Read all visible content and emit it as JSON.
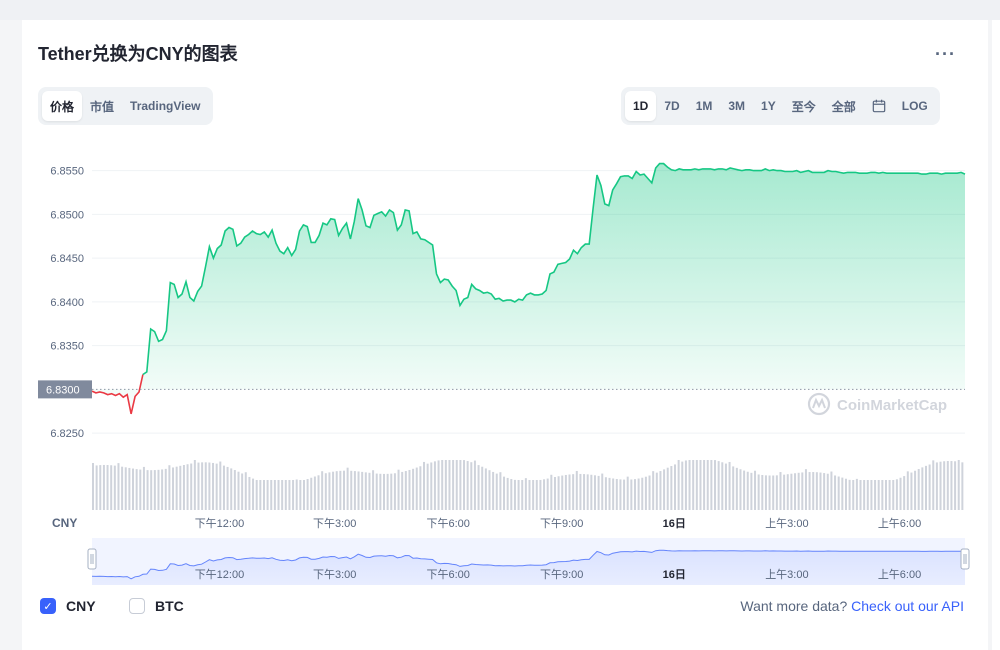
{
  "title": "Tether兑换为CNY的图表",
  "more_icon": "···",
  "chart_tabs": [
    {
      "label": "价格",
      "active": true
    },
    {
      "label": "市值",
      "active": false
    },
    {
      "label": "TradingView",
      "active": false
    }
  ],
  "range_tabs": [
    {
      "label": "1D",
      "active": true
    },
    {
      "label": "7D",
      "active": false
    },
    {
      "label": "1M",
      "active": false
    },
    {
      "label": "3M",
      "active": false
    },
    {
      "label": "1Y",
      "active": false
    },
    {
      "label": "至今",
      "active": false
    },
    {
      "label": "全部",
      "active": false
    }
  ],
  "calendar_icon": "calendar-icon",
  "log_label": "LOG",
  "watermark": "CoinMarketCap",
  "currency_label": "CNY",
  "legend": [
    {
      "label": "CNY",
      "checked": true
    },
    {
      "label": "BTC",
      "checked": false
    }
  ],
  "api_text": "Want more data?",
  "api_link": "Check out our API",
  "colors": {
    "up": "#16c784",
    "down": "#ea3943",
    "accent": "#3861fb",
    "volume": "#cfd3db",
    "baseline_tag": "#808a9d"
  },
  "chart_data": {
    "type": "area",
    "ylabel": "CNY",
    "ylim": [
      6.8225,
      6.8585
    ],
    "yticks": [
      "6.8550",
      "6.8500",
      "6.8450",
      "6.8400",
      "6.8350",
      "6.8250"
    ],
    "baseline": 6.83,
    "baseline_label": "6.8300",
    "xticks": [
      "下午12:00",
      "下午3:00",
      "下午6:00",
      "下午9:00",
      "16日",
      "上午3:00",
      "上午6:00"
    ],
    "xtick_pos": [
      0.146,
      0.278,
      0.408,
      0.538,
      0.667,
      0.796,
      0.925
    ],
    "series": [
      {
        "values": [
          6.8298,
          6.8296,
          6.8297,
          6.8296,
          6.8294,
          6.8295,
          6.8293,
          6.8295,
          6.8291,
          6.8294,
          6.8272,
          6.8292,
          6.8297,
          6.8317,
          6.832,
          6.8369,
          6.8366,
          6.8355,
          6.8357,
          6.8367,
          6.8422,
          6.842,
          6.8405,
          6.8409,
          6.8423,
          6.8405,
          6.8401,
          6.8412,
          6.8418,
          6.844,
          6.8463,
          6.845,
          6.8461,
          6.8465,
          6.8481,
          6.8485,
          6.8483,
          6.8464,
          6.8467,
          6.8474,
          6.8477,
          6.8481,
          6.8478,
          6.8477,
          6.848,
          6.8474,
          6.8482,
          6.8467,
          6.8458,
          6.8455,
          6.8462,
          6.8453,
          6.846,
          6.8481,
          6.8488,
          6.8486,
          6.8468,
          6.8468,
          6.8476,
          6.849,
          6.8488,
          6.8495,
          6.8494,
          6.8476,
          6.8484,
          6.849,
          6.8472,
          6.8492,
          6.8518,
          6.8505,
          6.8487,
          6.8485,
          6.8499,
          6.8501,
          6.8503,
          6.8498,
          6.8505,
          6.8502,
          6.8482,
          6.8488,
          6.8505,
          6.8504,
          6.8478,
          6.848,
          6.8472,
          6.8471,
          6.8468,
          6.8465,
          6.8432,
          6.8422,
          6.8426,
          6.8425,
          6.8418,
          6.8413,
          6.8396,
          6.8403,
          6.8405,
          6.842,
          6.8415,
          6.8413,
          6.841,
          6.8411,
          6.8409,
          6.8403,
          6.8404,
          6.8401,
          6.8402,
          6.8402,
          6.84,
          6.8403,
          6.8402,
          6.8408,
          6.841,
          6.8408,
          6.8408,
          6.8409,
          6.8413,
          6.8432,
          6.8434,
          6.8443,
          6.8444,
          6.8445,
          6.8449,
          6.8459,
          6.8455,
          6.8462,
          6.8466,
          6.8466,
          6.8507,
          6.8545,
          6.8533,
          6.8512,
          6.851,
          6.8528,
          6.8535,
          6.8543,
          6.8544,
          6.8544,
          6.8541,
          6.8549,
          6.8545,
          6.8546,
          6.8541,
          6.8536,
          6.8553,
          6.8558,
          6.8558,
          6.8554,
          6.8551,
          6.855,
          6.8552,
          6.8551,
          6.8551,
          6.8551,
          6.8552,
          6.8551,
          6.8552,
          6.8552,
          6.8552,
          6.8551,
          6.8552,
          6.8552,
          6.8551,
          6.8553,
          6.8552,
          6.8551,
          6.855,
          6.8551,
          6.8551,
          6.855,
          6.855,
          6.855,
          6.8552,
          6.855,
          6.8551,
          6.855,
          6.855,
          6.8549,
          6.8549,
          6.8549,
          6.855,
          6.8548,
          6.8549,
          6.855,
          6.8548,
          6.8548,
          6.8548,
          6.8548,
          6.855,
          6.8549,
          6.8549,
          6.8548,
          6.8547,
          6.8548,
          6.8548,
          6.8548,
          6.8547,
          6.8547,
          6.8547,
          6.8548,
          6.8548,
          6.8547,
          6.8548,
          6.8547,
          6.8547,
          6.8547,
          6.8547,
          6.8547,
          6.8547,
          6.8547,
          6.8547,
          6.8547,
          6.8546,
          6.8546,
          6.8547,
          6.8547,
          6.8547,
          6.8546,
          6.8547,
          6.8547,
          6.8547,
          6.8547,
          6.8548,
          6.8546
        ]
      }
    ]
  }
}
